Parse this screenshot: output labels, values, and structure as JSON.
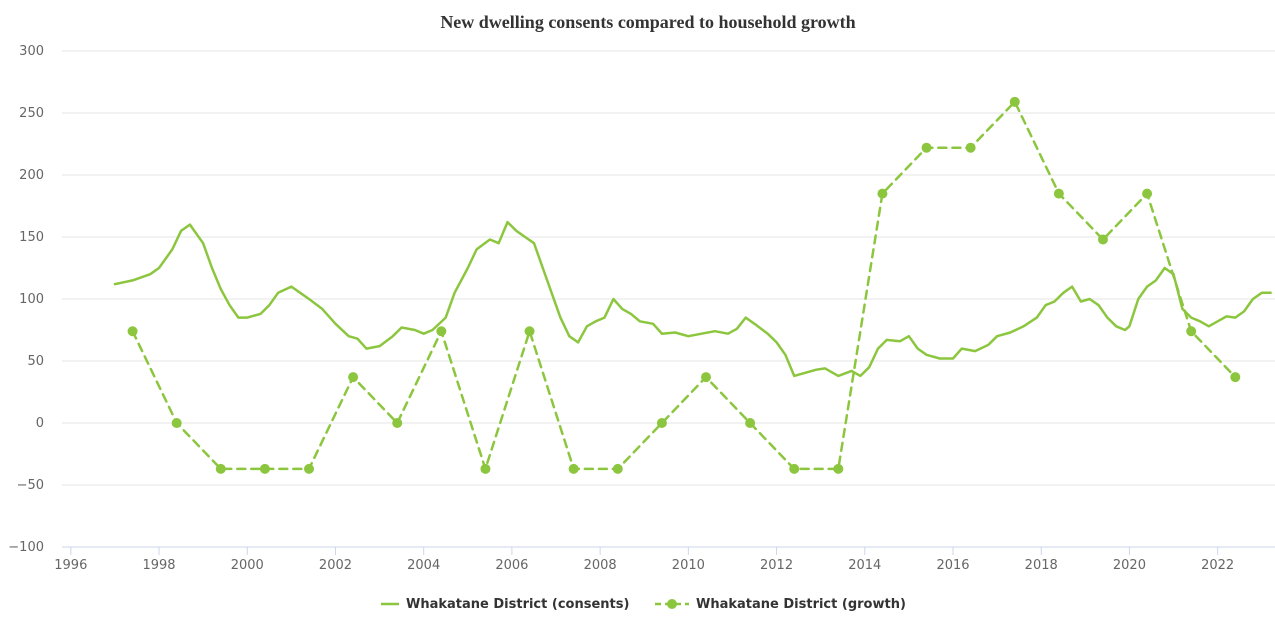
{
  "chart_data": {
    "type": "line",
    "title": "New dwelling consents compared to household growth",
    "xlabel": "",
    "ylabel": "",
    "xlim": [
      1995.8,
      2023.3
    ],
    "ylim": [
      -100,
      300
    ],
    "x_ticks": [
      "1996",
      "1998",
      "2000",
      "2002",
      "2004",
      "2006",
      "2008",
      "2010",
      "2012",
      "2014",
      "2016",
      "2018",
      "2020",
      "2022"
    ],
    "y_ticks": [
      "300",
      "250",
      "200",
      "150",
      "100",
      "50",
      "0",
      "−50",
      "−100"
    ],
    "grid": "horizontal",
    "legend": "bottom-center",
    "series": [
      {
        "name": "Whakatane District (consents)",
        "style": "solid",
        "color": "#8cc63f",
        "points": [
          [
            1997.0,
            112
          ],
          [
            1997.4,
            115
          ],
          [
            1997.8,
            120
          ],
          [
            1998.0,
            125
          ],
          [
            1998.3,
            140
          ],
          [
            1998.5,
            155
          ],
          [
            1998.7,
            160
          ],
          [
            1999.0,
            145
          ],
          [
            1999.2,
            125
          ],
          [
            1999.4,
            108
          ],
          [
            1999.6,
            95
          ],
          [
            1999.8,
            85
          ],
          [
            2000.0,
            85
          ],
          [
            2000.3,
            88
          ],
          [
            2000.5,
            95
          ],
          [
            2000.7,
            105
          ],
          [
            2001.0,
            110
          ],
          [
            2001.2,
            105
          ],
          [
            2001.4,
            100
          ],
          [
            2001.7,
            92
          ],
          [
            2002.0,
            80
          ],
          [
            2002.3,
            70
          ],
          [
            2002.5,
            68
          ],
          [
            2002.7,
            60
          ],
          [
            2003.0,
            62
          ],
          [
            2003.3,
            70
          ],
          [
            2003.5,
            77
          ],
          [
            2003.8,
            75
          ],
          [
            2004.0,
            72
          ],
          [
            2004.2,
            75
          ],
          [
            2004.5,
            85
          ],
          [
            2004.7,
            105
          ],
          [
            2005.0,
            125
          ],
          [
            2005.2,
            140
          ],
          [
            2005.5,
            148
          ],
          [
            2005.7,
            145
          ],
          [
            2005.9,
            162
          ],
          [
            2006.1,
            155
          ],
          [
            2006.3,
            150
          ],
          [
            2006.5,
            145
          ],
          [
            2006.7,
            125
          ],
          [
            2006.9,
            105
          ],
          [
            2007.1,
            85
          ],
          [
            2007.3,
            70
          ],
          [
            2007.5,
            65
          ],
          [
            2007.7,
            78
          ],
          [
            2007.9,
            82
          ],
          [
            2008.1,
            85
          ],
          [
            2008.3,
            100
          ],
          [
            2008.5,
            92
          ],
          [
            2008.7,
            88
          ],
          [
            2008.9,
            82
          ],
          [
            2009.2,
            80
          ],
          [
            2009.4,
            72
          ],
          [
            2009.7,
            73
          ],
          [
            2010.0,
            70
          ],
          [
            2010.3,
            72
          ],
          [
            2010.6,
            74
          ],
          [
            2010.9,
            72
          ],
          [
            2011.1,
            76
          ],
          [
            2011.3,
            85
          ],
          [
            2011.5,
            80
          ],
          [
            2011.8,
            72
          ],
          [
            2012.0,
            65
          ],
          [
            2012.2,
            55
          ],
          [
            2012.4,
            38
          ],
          [
            2012.6,
            40
          ],
          [
            2012.9,
            43
          ],
          [
            2013.1,
            44
          ],
          [
            2013.4,
            38
          ],
          [
            2013.7,
            42
          ],
          [
            2013.9,
            38
          ],
          [
            2014.1,
            45
          ],
          [
            2014.3,
            60
          ],
          [
            2014.5,
            67
          ],
          [
            2014.8,
            66
          ],
          [
            2015.0,
            70
          ],
          [
            2015.2,
            60
          ],
          [
            2015.4,
            55
          ],
          [
            2015.7,
            52
          ],
          [
            2016.0,
            52
          ],
          [
            2016.2,
            60
          ],
          [
            2016.5,
            58
          ],
          [
            2016.8,
            63
          ],
          [
            2017.0,
            70
          ],
          [
            2017.3,
            73
          ],
          [
            2017.6,
            78
          ],
          [
            2017.9,
            85
          ],
          [
            2018.1,
            95
          ],
          [
            2018.3,
            98
          ],
          [
            2018.5,
            105
          ],
          [
            2018.7,
            110
          ],
          [
            2018.9,
            98
          ],
          [
            2019.1,
            100
          ],
          [
            2019.3,
            95
          ],
          [
            2019.5,
            85
          ],
          [
            2019.7,
            78
          ],
          [
            2019.9,
            75
          ],
          [
            2020.0,
            78
          ],
          [
            2020.2,
            100
          ],
          [
            2020.4,
            110
          ],
          [
            2020.6,
            115
          ],
          [
            2020.8,
            125
          ],
          [
            2021.0,
            120
          ],
          [
            2021.2,
            92
          ],
          [
            2021.4,
            85
          ],
          [
            2021.6,
            82
          ],
          [
            2021.8,
            78
          ],
          [
            2022.0,
            82
          ],
          [
            2022.2,
            86
          ],
          [
            2022.4,
            85
          ],
          [
            2022.6,
            90
          ],
          [
            2022.8,
            100
          ],
          [
            2023.0,
            105
          ],
          [
            2023.2,
            105
          ]
        ]
      },
      {
        "name": "Whakatane District (growth)",
        "style": "dashed",
        "color": "#8cc63f",
        "points": [
          [
            1997.4,
            74
          ],
          [
            1998.4,
            0
          ],
          [
            1999.4,
            -37
          ],
          [
            2000.4,
            -37
          ],
          [
            2001.4,
            -37
          ],
          [
            2002.4,
            37
          ],
          [
            2003.4,
            0
          ],
          [
            2004.4,
            74
          ],
          [
            2005.4,
            -37
          ],
          [
            2006.4,
            74
          ],
          [
            2007.4,
            -37
          ],
          [
            2008.4,
            -37
          ],
          [
            2009.4,
            0
          ],
          [
            2010.4,
            37
          ],
          [
            2011.4,
            0
          ],
          [
            2012.4,
            -37
          ],
          [
            2013.4,
            -37
          ],
          [
            2014.4,
            185
          ],
          [
            2015.4,
            222
          ],
          [
            2016.4,
            222
          ],
          [
            2017.4,
            259
          ],
          [
            2018.4,
            185
          ],
          [
            2019.4,
            148
          ],
          [
            2020.4,
            185
          ],
          [
            2021.4,
            74
          ],
          [
            2022.4,
            37
          ]
        ]
      }
    ]
  }
}
